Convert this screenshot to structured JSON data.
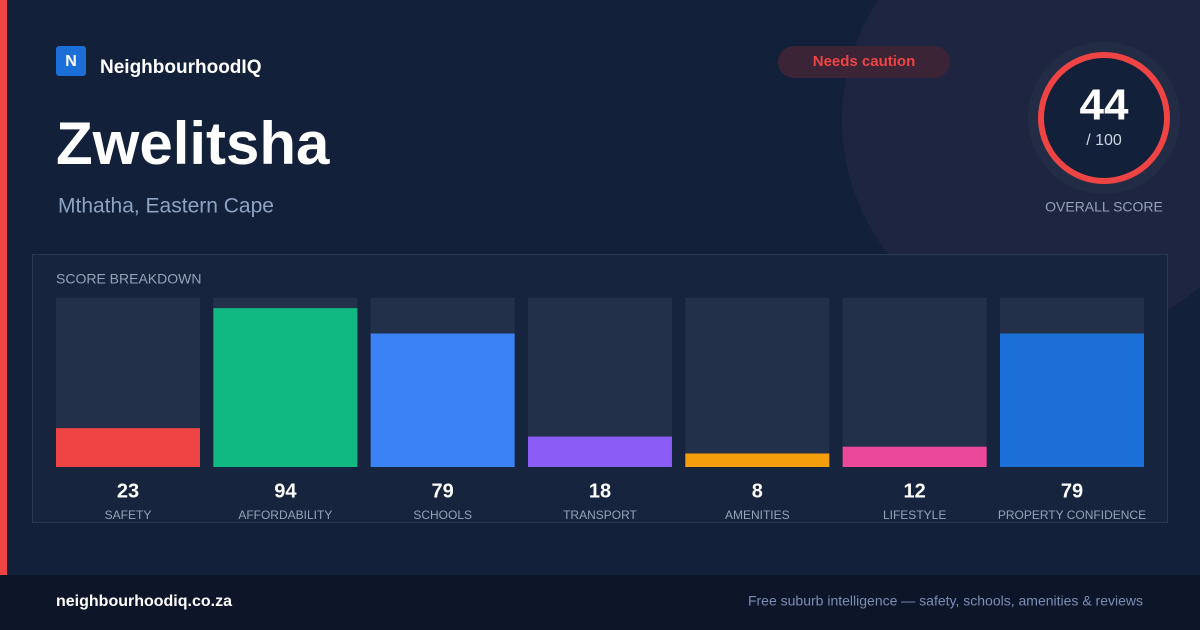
{
  "brand": {
    "logo": "N",
    "name": "NeighbourhoodIQ"
  },
  "badge": "Needs caution",
  "header": {
    "title": "Zwelitsha",
    "subtitle": "Mthatha, Eastern Cape"
  },
  "overall": {
    "score": 44,
    "max": {
      "value": 100,
      "label": "/ 100"
    },
    "label": "OVERALL SCORE"
  },
  "breakdown": {
    "title": "SCORE BREAKDOWN",
    "items": [
      {
        "label": "SAFETY",
        "value": 23,
        "color": "#ef4444"
      },
      {
        "label": "AFFORDABILITY",
        "value": 94,
        "color": "#10b981"
      },
      {
        "label": "SCHOOLS",
        "value": 79,
        "color": "#3b82f6"
      },
      {
        "label": "TRANSPORT",
        "value": 18,
        "color": "#8b5cf6"
      },
      {
        "label": "AMENITIES",
        "value": 8,
        "color": "#f59e0b"
      },
      {
        "label": "LIFESTYLE",
        "value": 12,
        "color": "#ec4899"
      },
      {
        "label": "PROPERTY CONFIDENCE",
        "value": 79,
        "color": "#1d6fd8"
      }
    ]
  },
  "footer": {
    "site": "neighbourhoodiq.co.za",
    "tagline": "Free suburb intelligence — safety, schools, amenities & reviews"
  }
}
